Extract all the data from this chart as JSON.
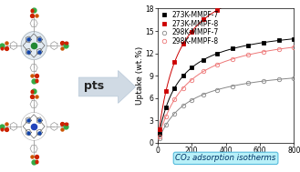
{
  "title": "",
  "xlabel": "Pressure (Torr)",
  "ylabel": "Uptake (wt.%)",
  "xlim": [
    0,
    800
  ],
  "ylim": [
    0,
    18
  ],
  "yticks": [
    0,
    3,
    6,
    9,
    12,
    15,
    18
  ],
  "xticks": [
    0,
    200,
    400,
    600,
    800
  ],
  "series": [
    {
      "label": "273K-MMPF-7",
      "color": "#000000",
      "marker": "s",
      "filled": true,
      "qmax": 16.0,
      "b": 0.0085
    },
    {
      "label": "273K-MMPF-8",
      "color": "#cc0000",
      "marker": "s",
      "filled": true,
      "qmax": 24.0,
      "b": 0.0082
    },
    {
      "label": "298K-MMPF-7",
      "color": "#888888",
      "marker": "o",
      "filled": false,
      "qmax": 10.5,
      "b": 0.006
    },
    {
      "label": "298K-MMPF-8",
      "color": "#ee7777",
      "marker": "o",
      "filled": false,
      "qmax": 15.5,
      "b": 0.006
    }
  ],
  "pts_text": "pts",
  "arrow_color": "#d0dae4",
  "arrow_edge_color": "#b8c8d8",
  "co2_label": "CO₂ adsorption isotherms",
  "co2_box_facecolor": "#b8f0f8",
  "co2_box_edgecolor": "#55bbdd",
  "background_color": "#ffffff",
  "legend_fontsize": 5.5,
  "axis_fontsize": 6.5,
  "tick_fontsize": 5.5,
  "struct_arm_color": "#999999",
  "struct_bond_color": "#666666",
  "struct_o_color": "#cc2200",
  "struct_n_color": "#1144aa",
  "struct1_metal_color": "#228833",
  "struct2_metal_color": "#2244bb"
}
